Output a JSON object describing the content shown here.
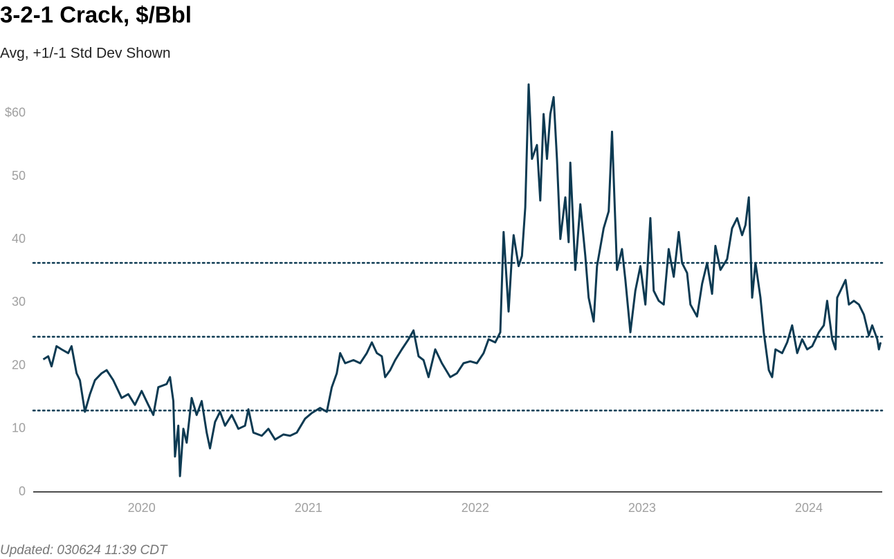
{
  "chart_data": {
    "type": "line",
    "title": "3-2-1 Crack, $/Bbl",
    "subtitle": "Avg, +1/-1 Std Dev Shown",
    "footnote": "Updated: 030624 11:39 CDT",
    "color": "#0d3a52",
    "x": [
      2019.41,
      2019.44,
      2019.46,
      2019.49,
      2019.52,
      2019.56,
      2019.58,
      2019.61,
      2019.63,
      2019.66,
      2019.69,
      2019.72,
      2019.76,
      2019.79,
      2019.83,
      2019.88,
      2019.92,
      2019.96,
      2020.0,
      2020.04,
      2020.07,
      2020.1,
      2020.15,
      2020.17,
      2020.19,
      2020.2,
      2020.22,
      2020.23,
      2020.25,
      2020.27,
      2020.3,
      2020.33,
      2020.36,
      2020.39,
      2020.41,
      2020.44,
      2020.47,
      2020.5,
      2020.54,
      2020.58,
      2020.62,
      2020.64,
      2020.67,
      2020.72,
      2020.76,
      2020.8,
      2020.85,
      2020.89,
      2020.93,
      2020.98,
      2021.02,
      2021.07,
      2021.11,
      2021.14,
      2021.17,
      2021.19,
      2021.22,
      2021.27,
      2021.31,
      2021.35,
      2021.38,
      2021.41,
      2021.44,
      2021.46,
      2021.49,
      2021.52,
      2021.56,
      2021.6,
      2021.63,
      2021.66,
      2021.69,
      2021.72,
      2021.76,
      2021.8,
      2021.85,
      2021.89,
      2021.93,
      2021.97,
      2022.01,
      2022.05,
      2022.08,
      2022.12,
      2022.15,
      2022.17,
      2022.2,
      2022.22,
      2022.23,
      2022.26,
      2022.28,
      2022.3,
      2022.32,
      2022.34,
      2022.37,
      2022.39,
      2022.41,
      2022.43,
      2022.45,
      2022.47,
      2022.49,
      2022.51,
      2022.54,
      2022.56,
      2022.57,
      2022.6,
      2022.63,
      2022.66,
      2022.68,
      2022.71,
      2022.73,
      2022.77,
      2022.8,
      2022.82,
      2022.85,
      2022.88,
      2022.9,
      2022.93,
      2022.96,
      2022.99,
      2023.02,
      2023.05,
      2023.07,
      2023.1,
      2023.13,
      2023.16,
      2023.19,
      2023.22,
      2023.24,
      2023.27,
      2023.29,
      2023.33,
      2023.36,
      2023.39,
      2023.42,
      2023.44,
      2023.47,
      2023.51,
      2023.54,
      2023.57,
      2023.6,
      2023.62,
      2023.64,
      2023.66,
      2023.68,
      2023.71,
      2023.73,
      2023.76,
      2023.78,
      2023.8,
      2023.84,
      2023.87,
      2023.9,
      2023.93,
      2023.96,
      2023.99,
      2024.02,
      2024.06,
      2024.09,
      2024.11,
      2024.14,
      2024.16,
      2024.17,
      2024.19,
      2024.22,
      2024.24,
      2024.27,
      2024.3,
      2024.33,
      2024.36,
      2024.38,
      2024.41,
      2024.42,
      2024.43
    ],
    "values": [
      21,
      21.5,
      19.9,
      23.1,
      22.6,
      22,
      23.1,
      18.8,
      17.7,
      12.7,
      15.5,
      17.7,
      18.8,
      19.3,
      17.7,
      14.9,
      15.5,
      13.8,
      16,
      13.8,
      12.2,
      16.6,
      17.1,
      18.2,
      14.4,
      5.6,
      10.5,
      2.5,
      10,
      7.8,
      14.9,
      12.2,
      14.4,
      9.4,
      6.9,
      11.1,
      12.7,
      10.5,
      12.2,
      10,
      10.5,
      13.1,
      9.4,
      8.9,
      10,
      8.3,
      9.1,
      8.9,
      9.4,
      11.6,
      12.5,
      13.3,
      12.7,
      16.6,
      18.8,
      22,
      20.4,
      20.9,
      20.4,
      22,
      23.7,
      22,
      21.5,
      18.2,
      19.3,
      20.9,
      22.6,
      24.2,
      25.6,
      21.5,
      20.9,
      18.2,
      22.6,
      20.4,
      18.2,
      18.8,
      20.4,
      20.7,
      20.4,
      22,
      24.2,
      23.7,
      25.3,
      41.2,
      28.6,
      37.4,
      40.7,
      35.8,
      37.4,
      45.1,
      64.6,
      52.8,
      55,
      46.2,
      59.9,
      52.8,
      59.9,
      62.6,
      52.8,
      40.1,
      46.7,
      39.6,
      52.2,
      35.2,
      45.6,
      37.4,
      30.8,
      27,
      35.8,
      41.8,
      44.5,
      57.1,
      35.2,
      38.5,
      33.6,
      25.3,
      31.9,
      35.8,
      29.7,
      43.4,
      31.9,
      30.3,
      29.7,
      38.5,
      34.1,
      41.2,
      36.3,
      34.7,
      29.7,
      27.8,
      33,
      36.3,
      31.4,
      39,
      35.2,
      36.9,
      41.8,
      43.4,
      40.7,
      42.3,
      46.7,
      30.8,
      36.3,
      30.8,
      25.3,
      19.3,
      18.2,
      22.6,
      22,
      23.7,
      26.4,
      22,
      24.2,
      22.6,
      23.1,
      25.3,
      26.4,
      30.3,
      24.2,
      22.6,
      30.8,
      31.9,
      33.6,
      29.7,
      30.3,
      29.7,
      28.1,
      24.8,
      26.4,
      24.2,
      22.6,
      23.7
    ],
    "reference_lines": [
      36.3,
      24.6,
      12.9
    ],
    "xlim": [
      2019.35,
      2024.44
    ],
    "xticks": [
      2020,
      2021,
      2022,
      2023,
      2024
    ],
    "ylim": [
      0,
      65
    ],
    "yticks": [
      0,
      10,
      20,
      30,
      40,
      50,
      {
        "value": 60,
        "label": "$60"
      }
    ],
    "grid": false
  }
}
